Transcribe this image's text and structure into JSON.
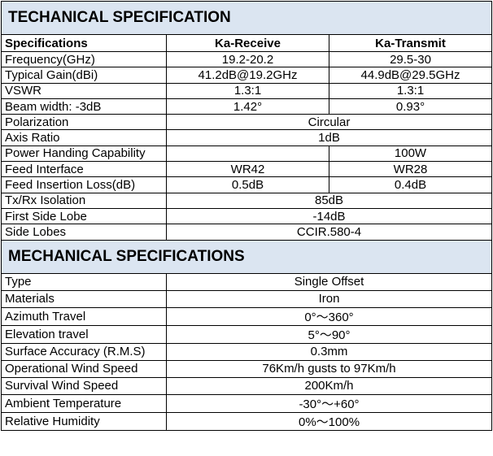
{
  "technical": {
    "title": "TECHANICAL SPECIFICATION",
    "header": [
      "Specifications",
      "Ka-Receive",
      "Ka-Transmit"
    ],
    "rows": [
      {
        "label": "Frequency(GHz)",
        "receive": "19.2-20.2",
        "transmit": "29.5-30"
      },
      {
        "label": "Typical Gain(dBi)",
        "receive": "41.2dB@19.2GHz",
        "transmit": "44.9dB@29.5GHz"
      },
      {
        "label": "VSWR",
        "receive": "1.3:1",
        "transmit": "1.3:1"
      },
      {
        "label": "Beam width: -3dB",
        "receive": "1.42°",
        "transmit": "0.93°"
      },
      {
        "label": "Polarization",
        "value": "Circular"
      },
      {
        "label": "Axis Ratio",
        "value": "1dB"
      },
      {
        "label": "Power Handing Capability",
        "transmit": "100W"
      },
      {
        "label": "Feed Interface",
        "receive": "WR42",
        "transmit": "WR28"
      },
      {
        "label": "Feed Insertion Loss(dB)",
        "receive": "0.5dB",
        "transmit": "0.4dB"
      },
      {
        "label": "Tx/Rx Isolation",
        "value": "85dB"
      },
      {
        "label": "First Side Lobe",
        "value": "-14dB"
      },
      {
        "label": "Side Lobes",
        "value": "CCIR.580-4"
      }
    ]
  },
  "mechanical": {
    "title": "MECHANICAL SPECIFICATIONS",
    "rows": [
      {
        "label": "Type",
        "value": "Single Offset"
      },
      {
        "label": "Materials",
        "value": "Iron"
      },
      {
        "label": "Azimuth Travel",
        "value": "0°～360°"
      },
      {
        "label": "Elevation travel",
        "value": "5°～90°"
      },
      {
        "label": "Surface Accuracy (R.M.S)",
        "value": "0.3mm"
      },
      {
        "label": "Operational Wind Speed",
        "value": "76Km/h gusts to 97Km/h"
      },
      {
        "label": "Survival Wind Speed",
        "value": "200Km/h"
      },
      {
        "label": "Ambient Temperature",
        "value": "-30°～+60°"
      },
      {
        "label": "Relative Humidity",
        "value": "0%～100%"
      }
    ]
  }
}
